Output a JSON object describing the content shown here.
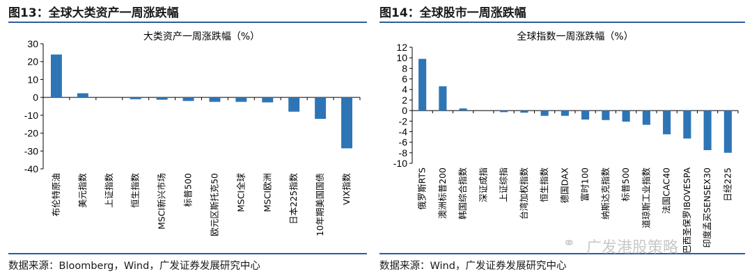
{
  "figures": [
    {
      "id": "left",
      "label": "图13：全球大类资产一周涨跌幅",
      "source": "数据来源：Bloomberg，Wind，广发证券发展研究中心"
    },
    {
      "id": "right",
      "label": "图14：全球股市一周涨跌幅",
      "source": "数据来源：Wind，广发证券发展研究中心"
    }
  ],
  "watermark": "广发港股策略",
  "colors": {
    "bar": "#2e75b6",
    "rule": "#2b5c9e"
  },
  "chart_data": [
    {
      "type": "bar",
      "title": "大类资产一周涨跌幅（%）",
      "xlabel": "",
      "ylabel": "",
      "ylim": [
        -40,
        30
      ],
      "yticks": [
        30,
        20,
        10,
        0,
        -10,
        -20,
        -30,
        -40
      ],
      "grid": false,
      "categories": [
        "布伦特原油",
        "美元指数",
        "上证指数",
        "恒生指数",
        "MSCI新兴市场",
        "标普500",
        "欧元区斯托克50",
        "MSCI全球",
        "MSCI欧洲",
        "日本225指数",
        "10年期美国国债",
        "VIX指数"
      ],
      "values": [
        24.0,
        2.3,
        0.0,
        -1.0,
        -1.3,
        -2.0,
        -2.5,
        -2.5,
        -2.8,
        -8.0,
        -12.0,
        -28.5
      ]
    },
    {
      "type": "bar",
      "title": "全球指数一周涨跌幅（%）",
      "xlabel": "",
      "ylabel": "",
      "ylim": [
        -10,
        12
      ],
      "yticks": [
        12,
        10,
        8,
        6,
        4,
        2,
        0,
        -2,
        -4,
        -6,
        -8,
        -10
      ],
      "grid": false,
      "categories": [
        "俄罗斯RTS",
        "澳洲标普200",
        "韩国综合指数",
        "深证成指",
        "上证综指",
        "台湾加权指数",
        "恒生指数",
        "德国DAX",
        "富时100",
        "纳斯达克指数",
        "标普500",
        "道琼斯工业指数",
        "法国CAC40",
        "巴西圣保罗IBOVESPA",
        "印度孟买SENSEX30",
        "日经225"
      ],
      "values": [
        9.8,
        4.6,
        0.4,
        0.0,
        -0.3,
        -0.4,
        -1.0,
        -1.0,
        -1.7,
        -1.8,
        -2.1,
        -2.7,
        -4.5,
        -5.3,
        -7.5,
        -8.0
      ]
    }
  ]
}
